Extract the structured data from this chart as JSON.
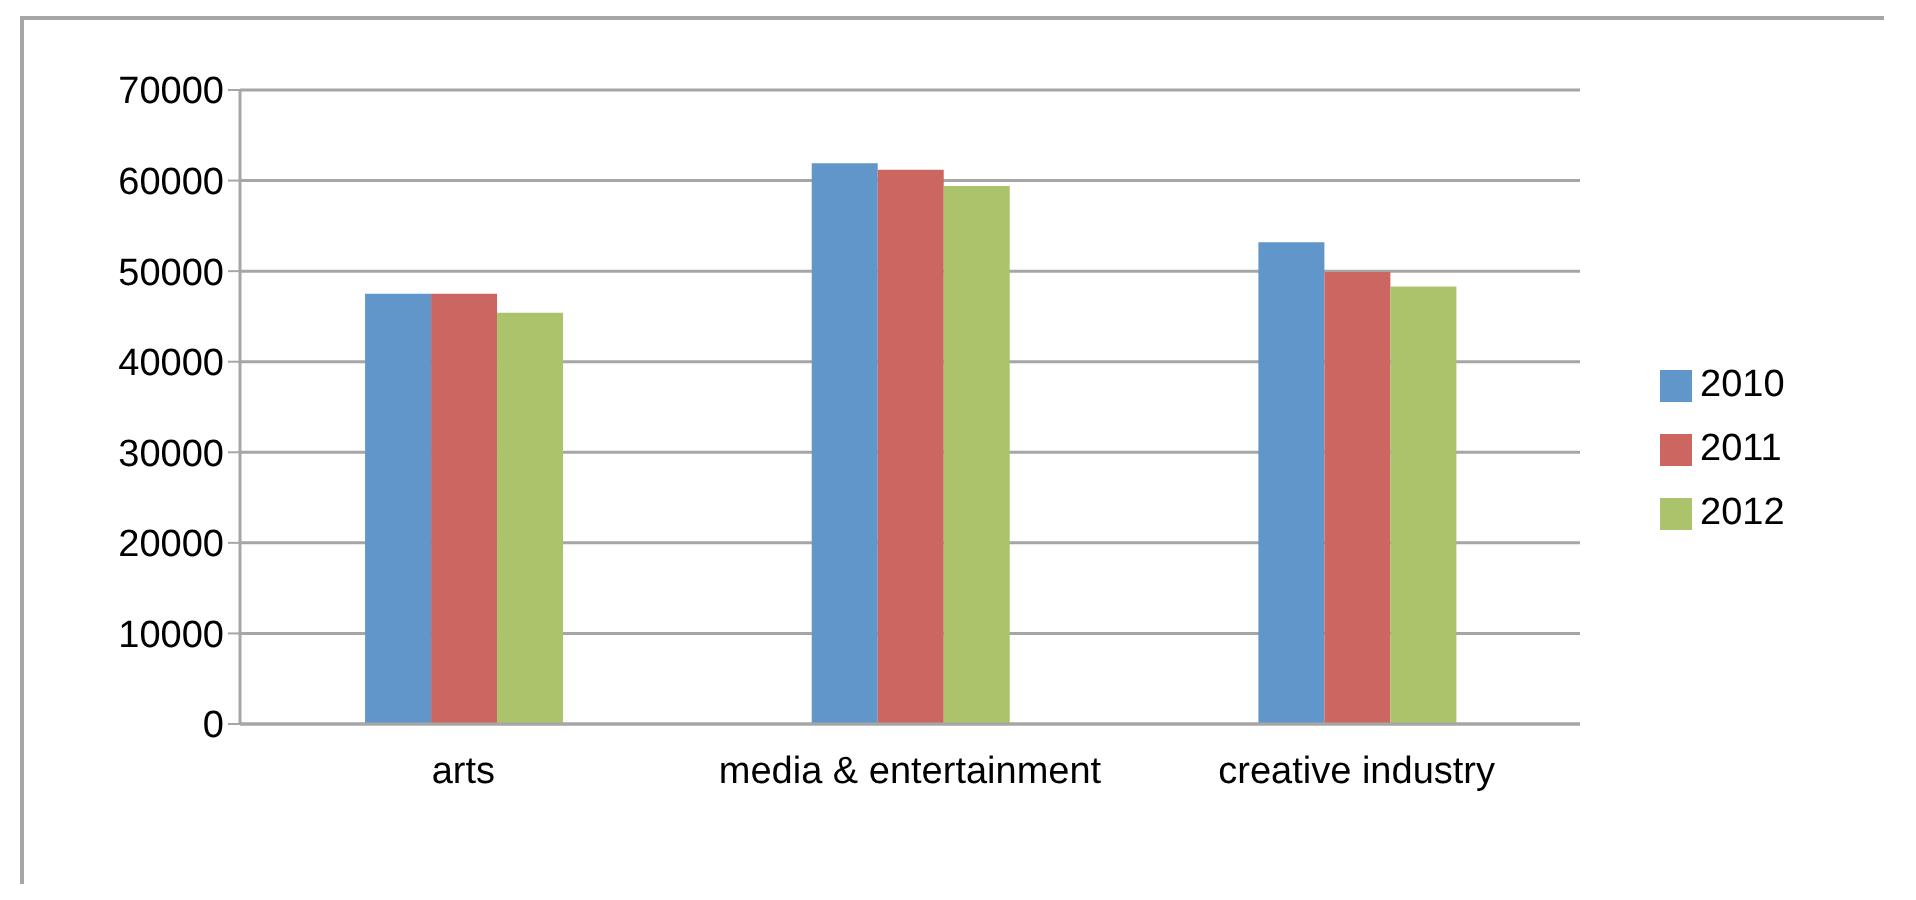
{
  "chart_data": {
    "type": "bar",
    "categories": [
      "arts",
      "media & entertainment",
      "creative industry"
    ],
    "series": [
      {
        "name": "2010",
        "color": "#6096c9",
        "values": [
          47500,
          61900,
          53200
        ]
      },
      {
        "name": "2011",
        "color": "#cc6660",
        "values": [
          47500,
          61200,
          49900
        ]
      },
      {
        "name": "2012",
        "color": "#abc46b",
        "values": [
          45400,
          59400,
          48300
        ]
      }
    ],
    "ylim": [
      0,
      70000
    ],
    "yticks": [
      0,
      10000,
      20000,
      30000,
      40000,
      50000,
      60000,
      70000
    ],
    "grid": "y",
    "legend": "right"
  }
}
